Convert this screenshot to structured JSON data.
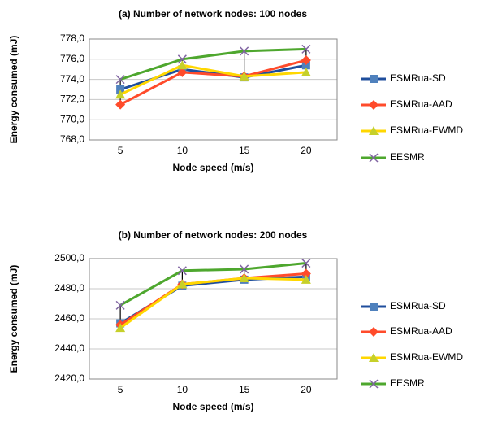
{
  "chart_data": [
    {
      "type": "line",
      "title": "(a) Number of network nodes: 100 nodes",
      "x_label": "Node speed (m/s)",
      "y_label": "Energy consumed (mJ)",
      "categories": [
        "5",
        "10",
        "15",
        "20"
      ],
      "ylim": [
        768,
        778
      ],
      "yticks": [
        {
          "value": 768,
          "label": "768,0"
        },
        {
          "value": 770,
          "label": "770,0"
        },
        {
          "value": 772,
          "label": "772,0"
        },
        {
          "value": 774,
          "label": "774,0"
        },
        {
          "value": 776,
          "label": "776,0"
        },
        {
          "value": 778,
          "label": "778,0"
        }
      ],
      "grid": true,
      "legend": "right",
      "series": [
        {
          "name": "ESMRua-SD",
          "color": "#1f4e9c",
          "marker": "square",
          "values": [
            773.0,
            775.0,
            774.2,
            775.4
          ]
        },
        {
          "name": "ESMRua-AAD",
          "color": "#ff4b2b",
          "marker": "diamond",
          "values": [
            771.5,
            774.7,
            774.3,
            775.9
          ]
        },
        {
          "name": "ESMRua-EWMD",
          "color": "#ffd700",
          "marker": "triangle",
          "values": [
            772.5,
            775.4,
            774.3,
            774.7
          ]
        },
        {
          "name": "EESMR",
          "color": "#4ea72e",
          "marker": "x",
          "values": [
            774.0,
            776.0,
            776.8,
            777.0
          ]
        }
      ]
    },
    {
      "type": "line",
      "title": "(b) Number of network nodes: 200 nodes",
      "x_label": "Node speed (m/s)",
      "y_label": "Energy consumed (mJ)",
      "categories": [
        "5",
        "10",
        "15",
        "20"
      ],
      "ylim": [
        2420,
        2500
      ],
      "yticks": [
        {
          "value": 2420,
          "label": "2420,0"
        },
        {
          "value": 2440,
          "label": "2440,0"
        },
        {
          "value": 2460,
          "label": "2460,0"
        },
        {
          "value": 2480,
          "label": "2480,0"
        },
        {
          "value": 2500,
          "label": "2500,0"
        }
      ],
      "grid": true,
      "legend": "right",
      "series": [
        {
          "name": "ESMRua-SD",
          "color": "#1f4e9c",
          "marker": "square",
          "values": [
            2457,
            2482,
            2486,
            2488
          ]
        },
        {
          "name": "ESMRua-AAD",
          "color": "#ff4b2b",
          "marker": "diamond",
          "values": [
            2456,
            2483,
            2487,
            2490
          ]
        },
        {
          "name": "ESMRua-EWMD",
          "color": "#ffd700",
          "marker": "triangle",
          "values": [
            2454,
            2483,
            2487,
            2486
          ]
        },
        {
          "name": "EESMR",
          "color": "#4ea72e",
          "marker": "x",
          "values": [
            2469,
            2492,
            2493,
            2497
          ]
        }
      ]
    }
  ]
}
